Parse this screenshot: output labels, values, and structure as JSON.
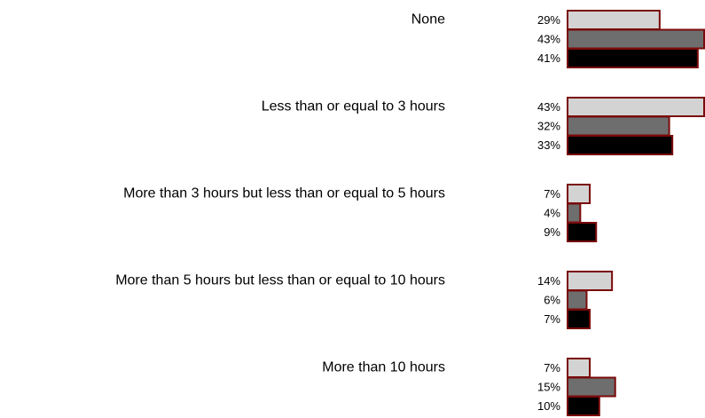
{
  "chart_data": {
    "type": "hbar",
    "categories": [
      "None",
      "Less than or equal to 3 hours",
      "More than 3 hours but less than or equal to 5 hours",
      "More than 5 hours but less than or equal to 10 hours",
      "More than 10 hours"
    ],
    "bar_edge_color": "#7a0a0a",
    "series": [
      {
        "color": "#d3d3d3",
        "values": [
          29,
          43,
          7,
          14,
          7
        ],
        "value_labels": [
          "29%",
          "43%",
          "7%",
          "14%",
          "7%"
        ]
      },
      {
        "color": "#6e6e6e",
        "values": [
          43,
          32,
          4,
          6,
          15
        ],
        "value_labels": [
          "43%",
          "32%",
          "4%",
          "6%",
          "15%"
        ]
      },
      {
        "color": "#000000",
        "values": [
          41,
          33,
          9,
          7,
          10
        ],
        "value_labels": [
          "41%",
          "33%",
          "9%",
          "7%",
          "10%"
        ]
      }
    ]
  }
}
